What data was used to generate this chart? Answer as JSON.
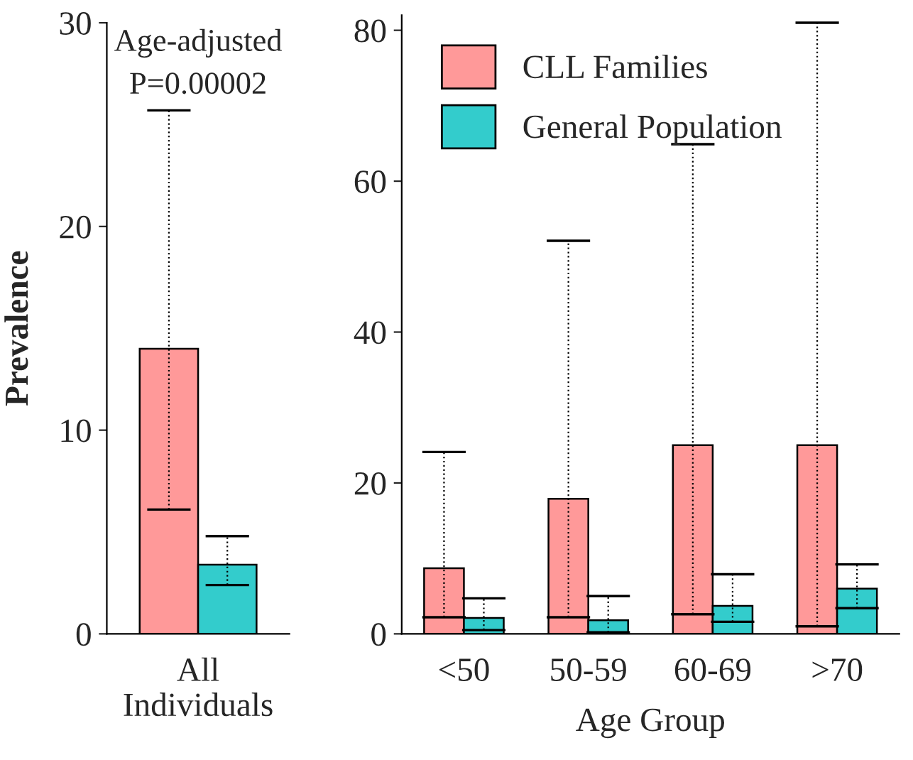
{
  "chart_data": [
    {
      "type": "bar",
      "ylabel": "Prevalence",
      "categories": [
        "All Individuals"
      ],
      "ylim": [
        0,
        30
      ],
      "yticks": [
        0,
        10,
        20,
        30
      ],
      "grid": false,
      "legend": false,
      "line_style": "dotted",
      "annotations": [
        "Age-adjusted",
        "P=0.00002"
      ],
      "series": [
        {
          "color": "#ff9999",
          "values": [
            14.0
          ],
          "errors": [
            [
              6.1,
              25.7
            ]
          ]
        },
        {
          "color": "#33cccc",
          "values": [
            3.4
          ],
          "errors": [
            [
              2.4,
              4.8
            ]
          ]
        }
      ]
    },
    {
      "type": "bar",
      "xlabel": "Age Group",
      "categories": [
        "<50",
        "50-59",
        "60-69",
        ">70"
      ],
      "ylim": [
        0,
        82
      ],
      "yticks": [
        0,
        20,
        40,
        60,
        80
      ],
      "grid": false,
      "legend": "top left",
      "line_style": "dotted",
      "series": [
        {
          "name": "CLL Families",
          "color": "#ff9999",
          "values": [
            8.7,
            17.9,
            25.0,
            25.0
          ],
          "errors": [
            [
              2.2,
              24.1
            ],
            [
              2.2,
              52.1
            ],
            [
              2.6,
              64.9
            ],
            [
              1.0,
              81.0
            ]
          ]
        },
        {
          "name": "General Population",
          "color": "#33cccc",
          "values": [
            2.1,
            1.8,
            3.7,
            6.0
          ],
          "errors": [
            [
              0.5,
              4.7
            ],
            [
              0.2,
              5.0
            ],
            [
              1.6,
              7.9
            ],
            [
              3.4,
              9.2
            ]
          ]
        }
      ]
    }
  ]
}
